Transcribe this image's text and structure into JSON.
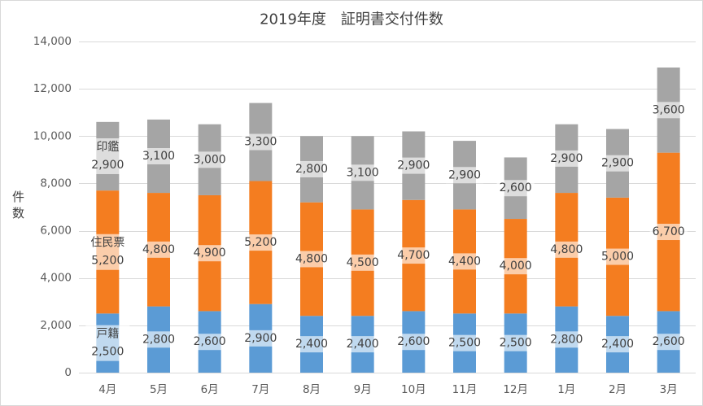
{
  "chart_data": {
    "type": "bar",
    "stacked": true,
    "title": "2019年度　証明書交付件数",
    "xlabel": "",
    "ylabel": "件数",
    "categories": [
      "4月",
      "5月",
      "6月",
      "7月",
      "8月",
      "9月",
      "10月",
      "11月",
      "12月",
      "1月",
      "2月",
      "3月"
    ],
    "ylim": [
      0,
      14000
    ],
    "yticks": [
      {
        "value": 0,
        "label": "0"
      },
      {
        "value": 2000,
        "label": "2,000"
      },
      {
        "value": 4000,
        "label": "4,000"
      },
      {
        "value": 6000,
        "label": "6,000"
      },
      {
        "value": 8000,
        "label": "8,000"
      },
      {
        "value": 10000,
        "label": "10,000"
      },
      {
        "value": 12000,
        "label": "12,000"
      },
      {
        "value": 14000,
        "label": "14,000"
      }
    ],
    "grid": true,
    "legend": "none",
    "series": [
      {
        "name": "戸籍",
        "color": "#5B9BD5",
        "values": [
          2500,
          2800,
          2600,
          2900,
          2400,
          2400,
          2600,
          2500,
          2500,
          2800,
          2400,
          2600
        ],
        "data_labels": [
          "2,500",
          "2,800",
          "2,600",
          "2,900",
          "2,400",
          "2,400",
          "2,600",
          "2,500",
          "2,500",
          "2,800",
          "2,400",
          "2,600"
        ]
      },
      {
        "name": "住民票",
        "color": "#F47D20",
        "values": [
          5200,
          4800,
          4900,
          5200,
          4800,
          4500,
          4700,
          4400,
          4000,
          4800,
          5000,
          6700
        ],
        "data_labels": [
          "5,200",
          "4,800",
          "4,900",
          "5,200",
          "4,800",
          "4,500",
          "4,700",
          "4,400",
          "4,000",
          "4,800",
          "5,000",
          "6,700"
        ]
      },
      {
        "name": "印鑑",
        "color": "#A5A5A5",
        "values": [
          2900,
          3100,
          3000,
          3300,
          2800,
          3100,
          2900,
          2900,
          2600,
          2900,
          2900,
          3600
        ],
        "data_labels": [
          "2,900",
          "3,100",
          "3,000",
          "3,300",
          "2,800",
          "3,100",
          "2,900",
          "2,900",
          "2,600",
          "2,900",
          "2,900",
          "3,600"
        ]
      }
    ]
  }
}
